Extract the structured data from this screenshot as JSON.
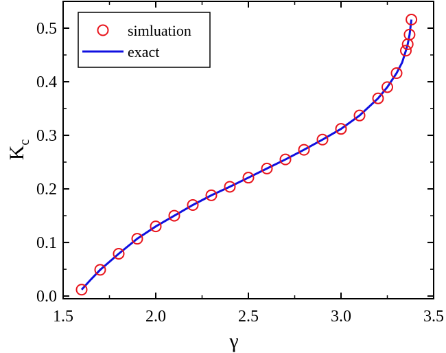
{
  "chart_data": {
    "type": "scatter",
    "title": "",
    "xlabel": "γ",
    "ylabel": "K",
    "ylabel_subscript": "c",
    "xlim": [
      1.5,
      3.5
    ],
    "ylim": [
      -0.005,
      0.55
    ],
    "xticks": [
      1.5,
      2.0,
      2.5,
      3.0,
      3.5
    ],
    "xtick_labels": [
      "1.5",
      "2.0",
      "2.5",
      "3.0",
      "3.5"
    ],
    "yticks": [
      0.0,
      0.1,
      0.2,
      0.3,
      0.4,
      0.5
    ],
    "ytick_labels": [
      "0.0",
      "0.1",
      "0.2",
      "0.3",
      "0.4",
      "0.5"
    ],
    "grid": false,
    "legend_position": "top-left",
    "series": [
      {
        "name": "simluation",
        "kind": "scatter",
        "marker": "open-circle",
        "color": "#e8141c",
        "x": [
          1.6,
          1.7,
          1.8,
          1.9,
          2.0,
          2.1,
          2.2,
          2.3,
          2.4,
          2.5,
          2.6,
          2.7,
          2.8,
          2.9,
          3.0,
          3.1,
          3.2,
          3.25,
          3.3,
          3.35,
          3.36,
          3.37,
          3.38
        ],
        "y": [
          0.012,
          0.049,
          0.079,
          0.107,
          0.13,
          0.15,
          0.17,
          0.188,
          0.204,
          0.221,
          0.238,
          0.255,
          0.273,
          0.292,
          0.312,
          0.337,
          0.369,
          0.39,
          0.416,
          0.458,
          0.47,
          0.488,
          0.516
        ]
      },
      {
        "name": "exact",
        "kind": "line",
        "color": "#1010e0",
        "x": [
          1.6,
          1.65,
          1.7,
          1.8,
          1.9,
          2.0,
          2.1,
          2.2,
          2.3,
          2.4,
          2.5,
          2.6,
          2.7,
          2.8,
          2.9,
          3.0,
          3.1,
          3.2,
          3.25,
          3.3,
          3.33,
          3.35,
          3.36,
          3.37,
          3.38
        ],
        "y": [
          0.012,
          0.031,
          0.049,
          0.079,
          0.107,
          0.13,
          0.15,
          0.17,
          0.188,
          0.204,
          0.221,
          0.238,
          0.255,
          0.273,
          0.292,
          0.312,
          0.337,
          0.369,
          0.39,
          0.416,
          0.436,
          0.458,
          0.47,
          0.488,
          0.516
        ]
      }
    ]
  }
}
